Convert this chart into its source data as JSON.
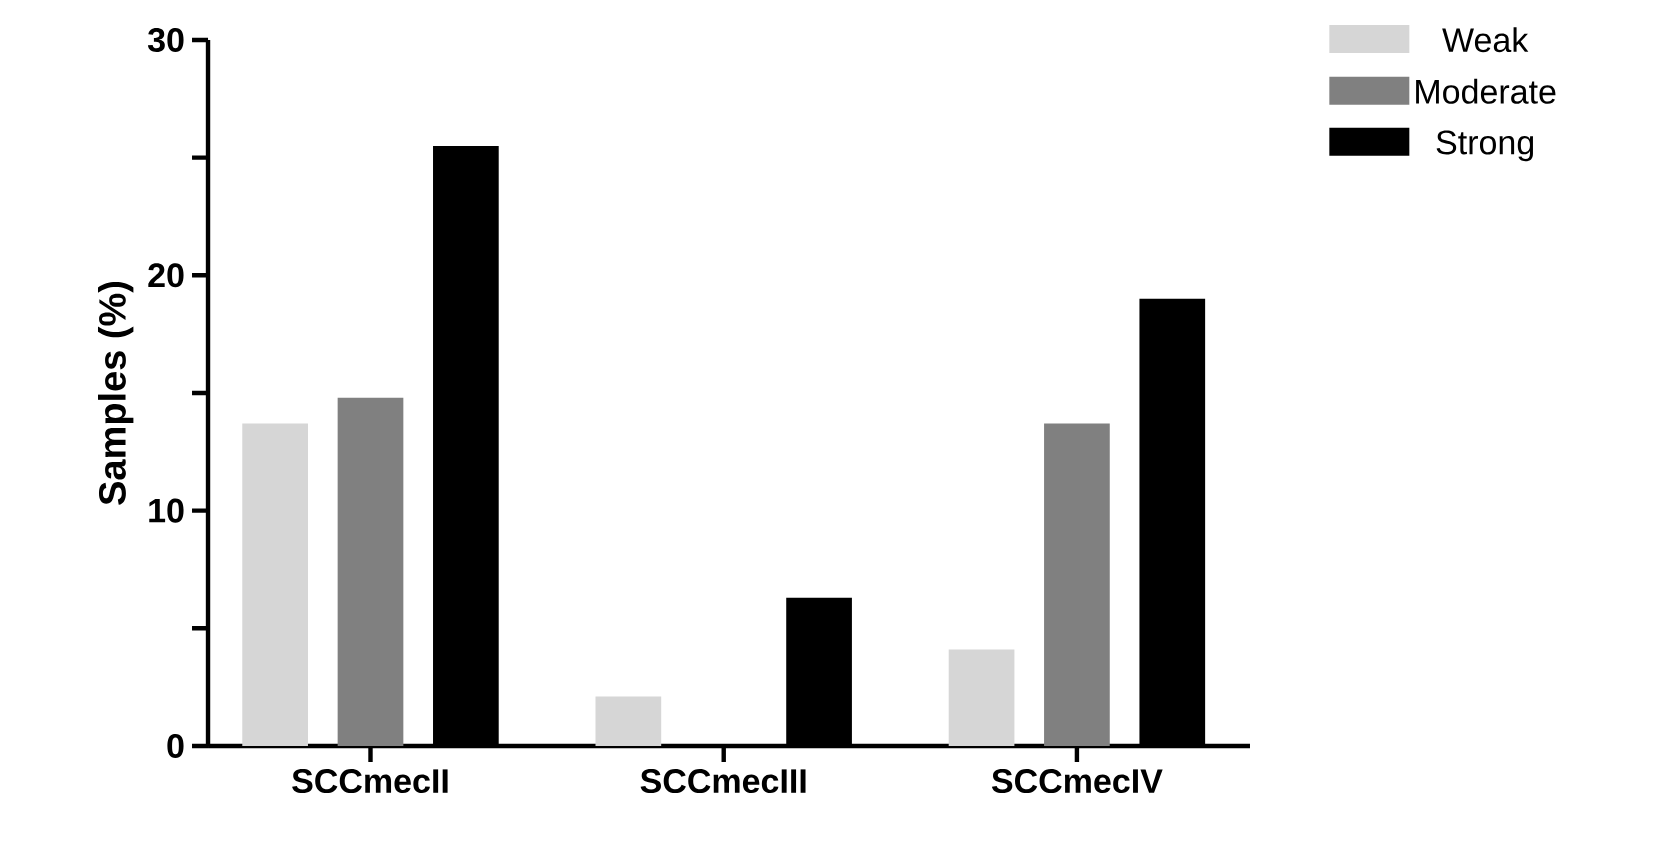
{
  "chart_data": {
    "type": "bar",
    "ylabel": "Samples (%)",
    "categories": [
      "SCCmecII",
      "SCCmecIII",
      "SCCmecIV"
    ],
    "series": [
      {
        "name": "Weak",
        "color": "#d6d6d6",
        "values": [
          13.7,
          2.1,
          4.1
        ]
      },
      {
        "name": "Moderate",
        "color": "#808080",
        "values": [
          14.8,
          0,
          13.7
        ]
      },
      {
        "name": "Strong",
        "color": "#000000",
        "values": [
          25.5,
          6.3,
          19.0
        ]
      }
    ],
    "ylim": [
      0,
      30
    ],
    "yticks": [
      0,
      {
        "value": 5,
        "label": null
      },
      10,
      {
        "value": 15,
        "label": null
      },
      20,
      {
        "value": 25,
        "label": null
      },
      30
    ],
    "grid": false,
    "legend": "top right"
  }
}
